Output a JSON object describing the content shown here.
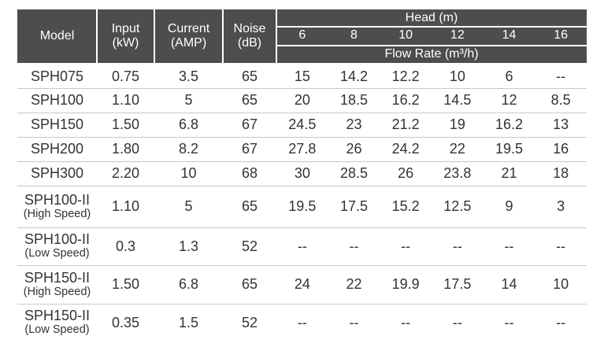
{
  "header": {
    "columns": [
      {
        "lines": [
          "Model"
        ]
      },
      {
        "lines": [
          "Input",
          "(kW)"
        ]
      },
      {
        "lines": [
          "Current",
          "(AMP)"
        ]
      },
      {
        "lines": [
          "Noise",
          "(dB)"
        ]
      }
    ],
    "head_title": "Head (m)",
    "heads": [
      "6",
      "8",
      "10",
      "12",
      "14",
      "16"
    ],
    "flow_rate": "Flow Rate (m³/h)"
  },
  "table": {
    "rows": [
      {
        "model": [
          "SPH075"
        ],
        "input": "0.75",
        "current": "3.5",
        "noise": "65",
        "flow": [
          "15",
          "14.2",
          "12.2",
          "10",
          "6",
          "--"
        ]
      },
      {
        "model": [
          "SPH100"
        ],
        "input": "1.10",
        "current": "5",
        "noise": "65",
        "flow": [
          "20",
          "18.5",
          "16.2",
          "14.5",
          "12",
          "8.5"
        ]
      },
      {
        "model": [
          "SPH150"
        ],
        "input": "1.50",
        "current": "6.8",
        "noise": "67",
        "flow": [
          "24.5",
          "23",
          "21.2",
          "19",
          "16.2",
          "13"
        ]
      },
      {
        "model": [
          "SPH200"
        ],
        "input": "1.80",
        "current": "8.2",
        "noise": "67",
        "flow": [
          "27.8",
          "26",
          "24.2",
          "22",
          "19.5",
          "16"
        ]
      },
      {
        "model": [
          "SPH300"
        ],
        "input": "2.20",
        "current": "10",
        "noise": "68",
        "flow": [
          "30",
          "28.5",
          "26",
          "23.8",
          "21",
          "18"
        ]
      },
      {
        "model": [
          "SPH100-II",
          "(High Speed)"
        ],
        "input": "1.10",
        "current": "5",
        "noise": "65",
        "flow": [
          "19.5",
          "17.5",
          "15.2",
          "12.5",
          "9",
          "3"
        ]
      },
      {
        "model": [
          "SPH100-II",
          "(Low Speed)"
        ],
        "input": "0.3",
        "current": "1.3",
        "noise": "52",
        "flow": [
          "--",
          "--",
          "--",
          "--",
          "--",
          "--"
        ]
      },
      {
        "model": [
          "SPH150-II",
          "(High Speed)"
        ],
        "input": "1.50",
        "current": "6.8",
        "noise": "65",
        "flow": [
          "24",
          "22",
          "19.9",
          "17.5",
          "14",
          "10"
        ]
      },
      {
        "model": [
          "SPH150-II",
          "(Low Speed)"
        ],
        "input": "0.35",
        "current": "1.5",
        "noise": "52",
        "flow": [
          "--",
          "--",
          "--",
          "--",
          "--",
          "--"
        ]
      }
    ]
  }
}
